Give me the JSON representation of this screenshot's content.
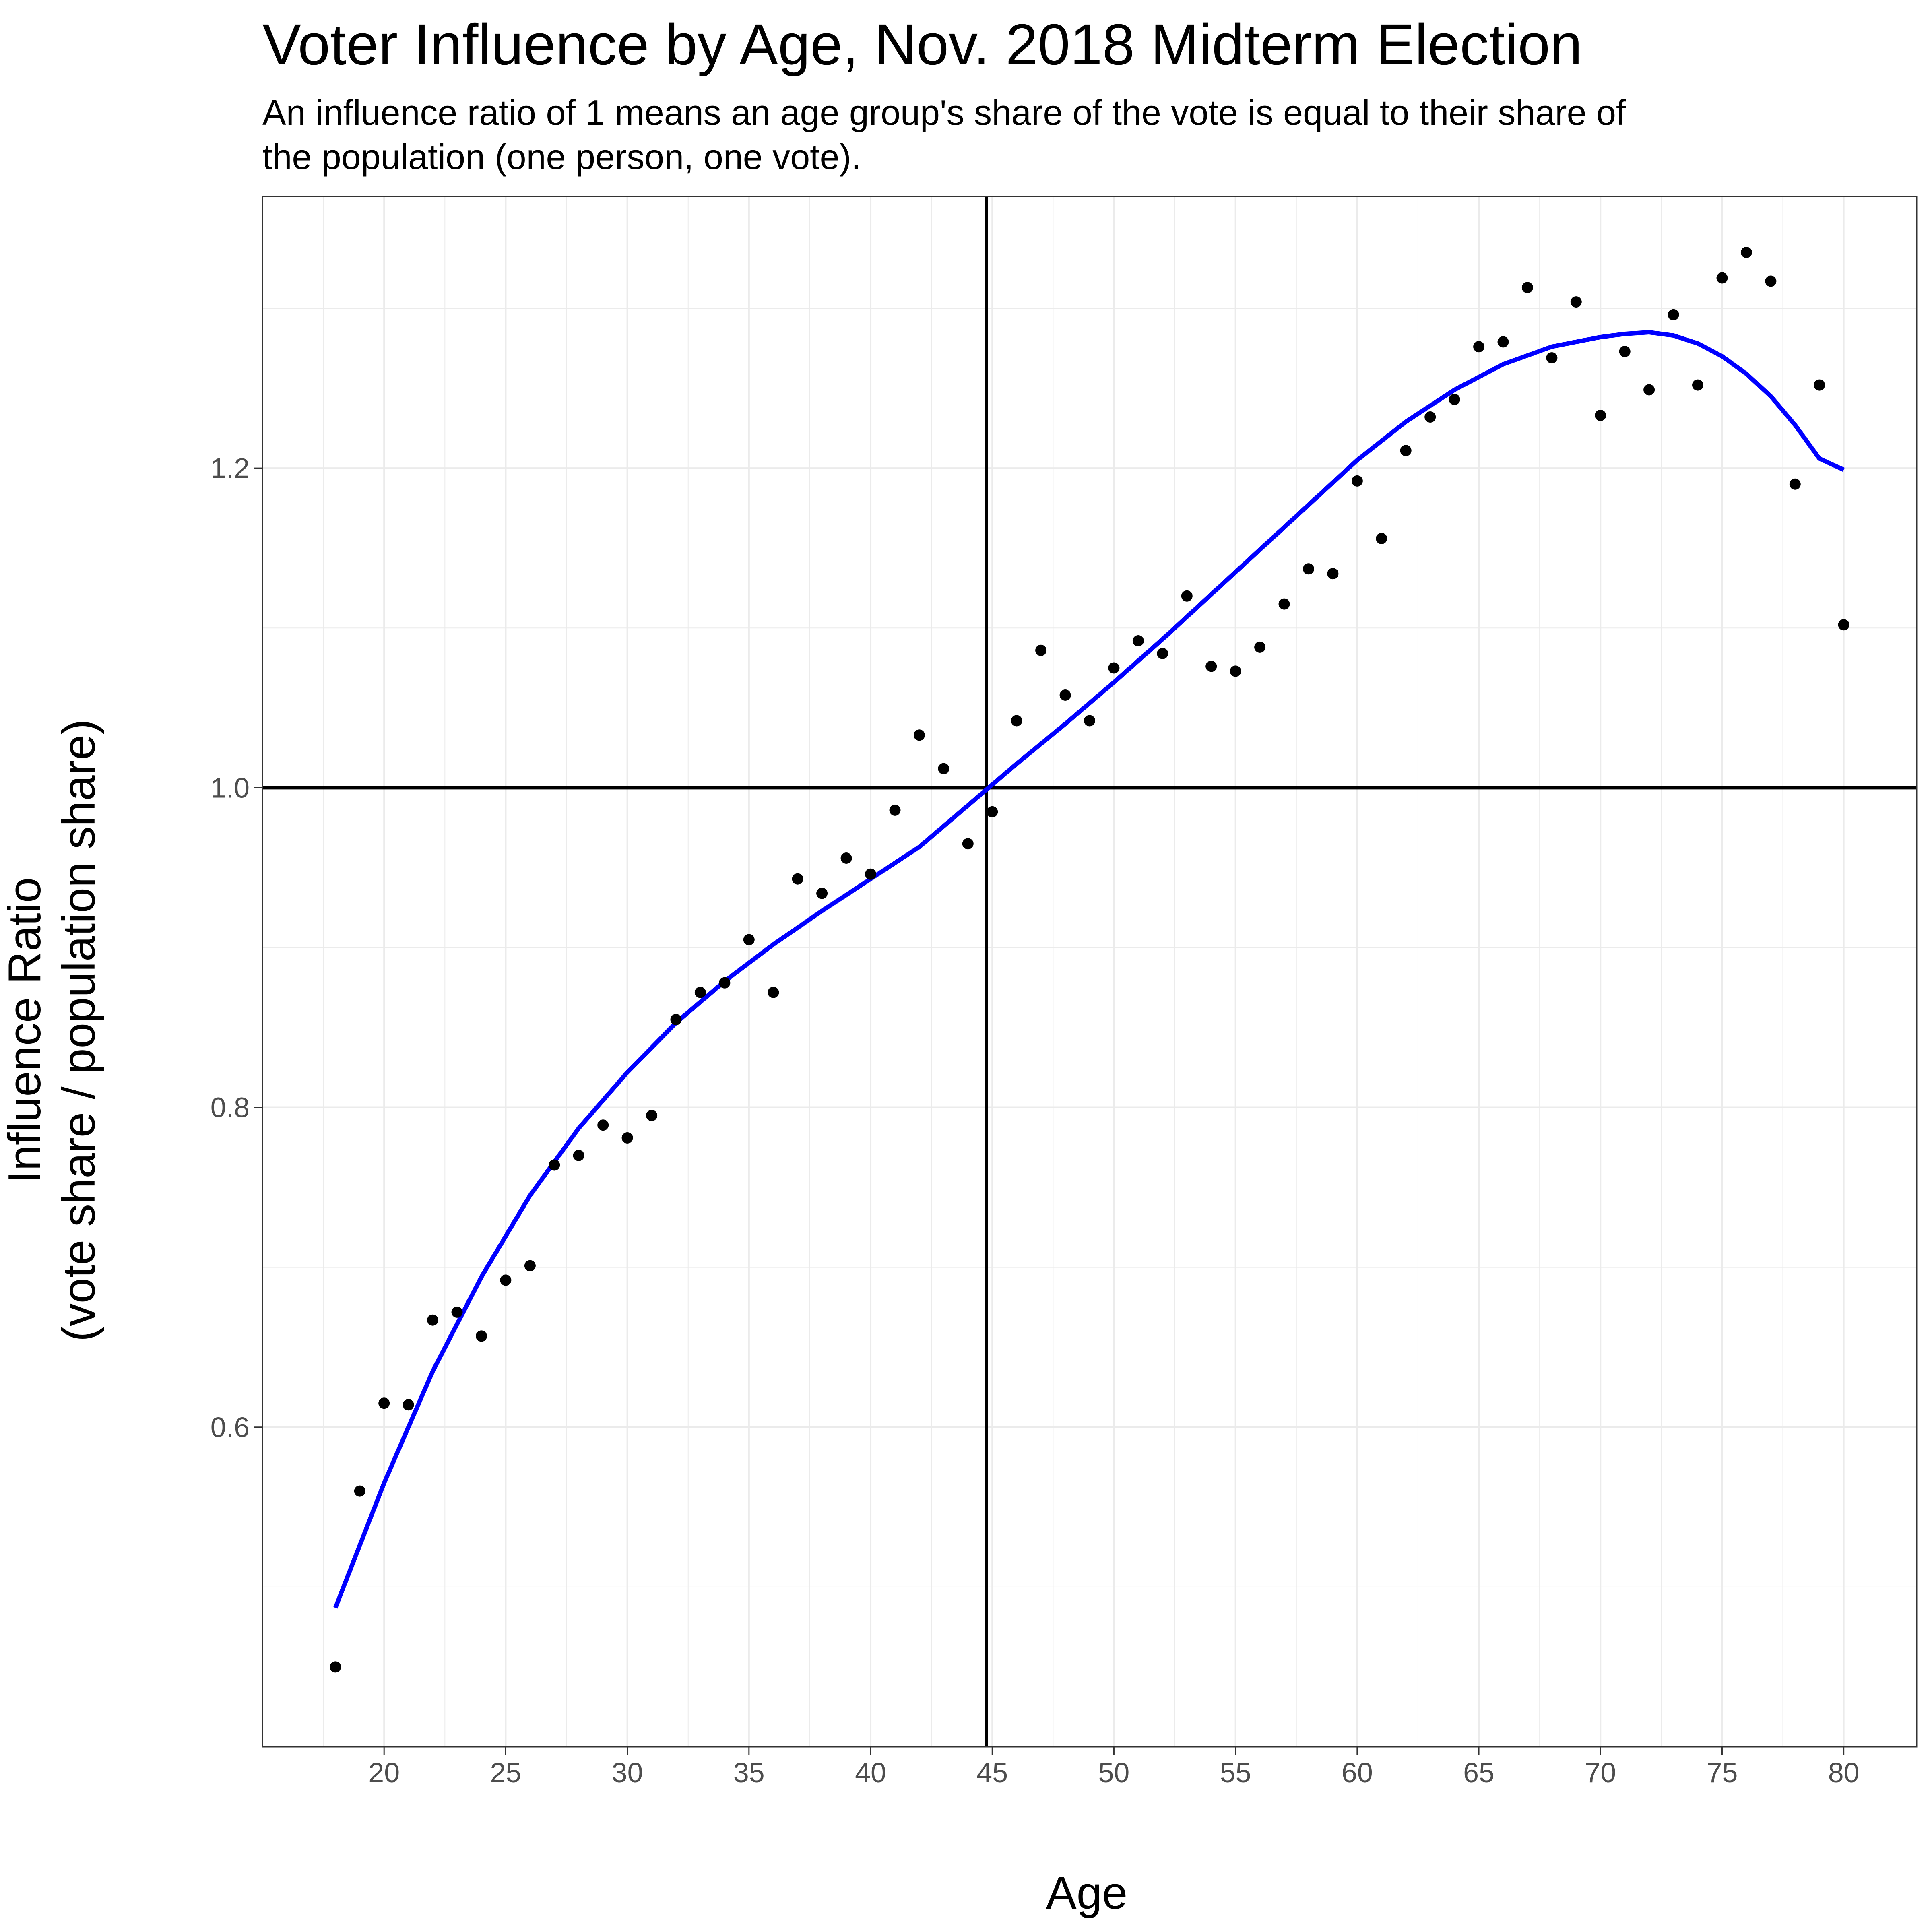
{
  "chart_data": {
    "type": "scatter",
    "title": "Voter Influence by Age, Nov. 2018 Midterm Election",
    "subtitle_lines": [
      "An influence ratio of 1 means an age group's share of the vote is equal to their share of",
      "the population (one person, one vote)."
    ],
    "xlabel": "Age",
    "ylabel_lines": [
      "Influence Ratio",
      "(vote share / population share)"
    ],
    "xlim": [
      15,
      83
    ],
    "ylim": [
      0.4,
      1.37
    ],
    "x_ticks": [
      20,
      25,
      30,
      35,
      40,
      45,
      50,
      55,
      60,
      65,
      70,
      75,
      80
    ],
    "x_tick_labels": [
      "20",
      "25",
      "30",
      "35",
      "40",
      "45",
      "50",
      "55",
      "60",
      "65",
      "70",
      "75",
      "80"
    ],
    "y_ticks": [
      0.6,
      0.8,
      1.0,
      1.2
    ],
    "y_tick_labels": [
      "0.6",
      "0.8",
      "1.0",
      "1.2"
    ],
    "grid": true,
    "reference_lines": {
      "vertical_x": 44.75,
      "horizontal_y": 1.0,
      "color": "#000000"
    },
    "colors": {
      "points": "#000000",
      "trend": "#0000ff",
      "grid": "#ebebeb",
      "border": "#333333"
    },
    "series": [
      {
        "type": "scatter",
        "x": [
          18,
          19,
          20,
          21,
          22,
          23,
          24,
          25,
          26,
          27,
          28,
          29,
          30,
          31,
          32,
          33,
          34,
          35,
          36,
          37,
          38,
          39,
          40,
          41,
          42,
          43,
          44,
          45,
          46,
          47,
          48,
          49,
          50,
          51,
          52,
          53,
          54,
          55,
          56,
          57,
          58,
          59,
          60,
          61,
          62,
          63,
          64,
          65,
          66,
          67,
          68,
          69,
          70,
          71,
          72,
          73,
          74,
          75,
          76,
          77,
          78,
          79,
          80
        ],
        "y": [
          0.45,
          0.56,
          0.615,
          0.614,
          0.667,
          0.672,
          0.657,
          0.692,
          0.701,
          0.764,
          0.77,
          0.789,
          0.781,
          0.795,
          0.855,
          0.872,
          0.878,
          0.905,
          0.872,
          0.943,
          0.934,
          0.956,
          0.946,
          0.986,
          1.033,
          1.012,
          0.965,
          0.985,
          1.042,
          1.086,
          1.058,
          1.042,
          1.075,
          1.092,
          1.084,
          1.12,
          1.076,
          1.073,
          1.088,
          1.115,
          1.137,
          1.134,
          1.192,
          1.156,
          1.211,
          1.232,
          1.243,
          1.276,
          1.279,
          1.313,
          1.269,
          1.304,
          1.233,
          1.273,
          1.249,
          1.296,
          1.252,
          1.319,
          1.335,
          1.317,
          1.19,
          1.252,
          1.102
        ]
      },
      {
        "type": "line",
        "x": [
          18,
          20,
          22,
          24,
          26,
          28,
          30,
          32,
          34,
          36,
          38,
          40,
          42,
          44,
          45,
          46,
          48,
          50,
          52,
          54,
          56,
          58,
          60,
          62,
          64,
          66,
          68,
          70,
          71,
          72,
          73,
          74,
          75,
          76,
          77,
          78,
          79,
          80
        ],
        "y": [
          0.487,
          0.565,
          0.635,
          0.694,
          0.745,
          0.787,
          0.822,
          0.853,
          0.879,
          0.902,
          0.923,
          0.943,
          0.963,
          0.989,
          1.002,
          1.015,
          1.04,
          1.066,
          1.093,
          1.121,
          1.149,
          1.177,
          1.205,
          1.229,
          1.249,
          1.265,
          1.276,
          1.282,
          1.284,
          1.285,
          1.283,
          1.278,
          1.27,
          1.259,
          1.245,
          1.227,
          1.206,
          1.199
        ]
      }
    ]
  }
}
